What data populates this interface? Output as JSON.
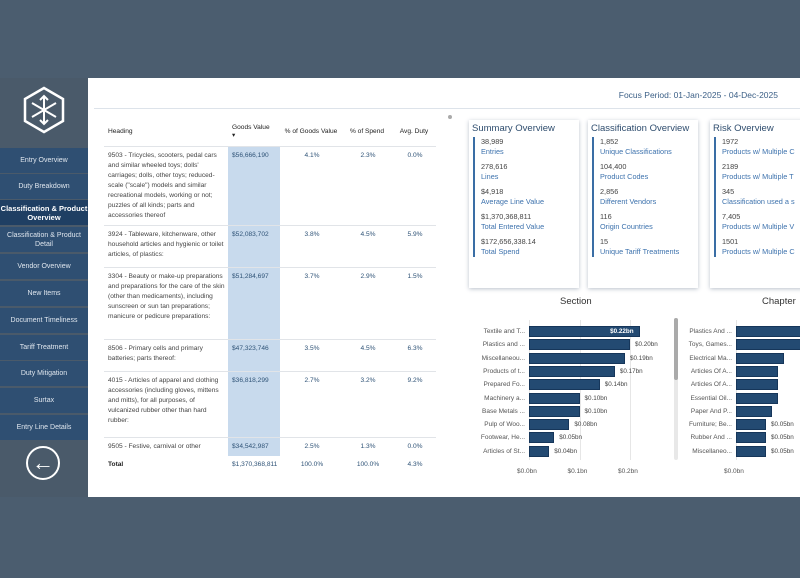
{
  "sidebar": {
    "items": [
      "Entry Overview",
      "Duty Breakdown",
      "Classification & Product Overview",
      "Classification & Product Detail",
      "Vendor Overview",
      "New Items",
      "Document Timeliness",
      "Tariff Treatment",
      "Duty Mitigation",
      "Surtax",
      "Entry Line Details"
    ],
    "active": 2,
    "back_icon": "arrow-left-circle-icon"
  },
  "header": {
    "focus_period": "Focus Period: 01-Jan-2025 - 04-Dec-2025"
  },
  "table": {
    "columns": [
      "Heading",
      "Goods Value",
      "% of Goods Value",
      "% of Spend",
      "Avg. Duty"
    ],
    "sort_indicator": "▾",
    "rows": [
      [
        "9503 - Tricycles, scooters, pedal cars and similar wheeled toys; dolls' carriages; dolls, other toys; reduced-scale (\"scale\") models and similar recreational models, working or not; puzzles of all kinds; parts and accessories thereof",
        "$56,666,190",
        "4.1%",
        "2.3%",
        "0.0%"
      ],
      [
        "3924 - Tableware, kitchenware, other household articles and hygienic or toilet articles, of plastics:",
        "$52,083,702",
        "3.8%",
        "4.5%",
        "5.9%"
      ],
      [
        "3304 - Beauty or make-up preparations and preparations for the care of the skin (other than medicaments), including sunscreen or sun tan preparations; manicure or pedicure preparations:",
        "$51,284,697",
        "3.7%",
        "2.9%",
        "1.5%"
      ],
      [
        "8506 - Primary cells and primary batteries; parts thereof:",
        "$47,323,746",
        "3.5%",
        "4.5%",
        "6.3%"
      ],
      [
        "4015 - Articles of apparel and clothing accessories (including gloves, mittens and mitts), for all purposes, of vulcanized rubber other than hard rubber:",
        "$36,818,299",
        "2.7%",
        "3.2%",
        "9.2%"
      ],
      [
        "9505 - Festive, carnival or other",
        "$34,542,987",
        "2.5%",
        "1.3%",
        "0.0%"
      ]
    ],
    "total": [
      "Total",
      "$1,370,368,811",
      "100.0%",
      "100.0%",
      "4.3%"
    ]
  },
  "cards": [
    {
      "title": "Summary Overview",
      "items": [
        [
          "38,989",
          "Entries"
        ],
        [
          "278,616",
          "Lines"
        ],
        [
          "$4,918",
          "Average Line Value"
        ],
        [
          "$1,370,368,811",
          "Total Entered Value"
        ],
        [
          "$172,656,338.14",
          "Total Spend"
        ]
      ]
    },
    {
      "title": "Classification Overview",
      "items": [
        [
          "1,852",
          "Unique Classifications"
        ],
        [
          "104,400",
          "Product Codes"
        ],
        [
          "2,856",
          "Different Vendors"
        ],
        [
          "116",
          "Origin Countries"
        ],
        [
          "15",
          "Unique Tariff Treatments"
        ]
      ]
    },
    {
      "title": "Risk Overview",
      "items": [
        [
          "1972",
          "Products w/ Multiple C"
        ],
        [
          "2189",
          "Products w/ Multiple T"
        ],
        [
          "345",
          "Classification used a s"
        ],
        [
          "7,405",
          "Products w/ Multiple V"
        ],
        [
          "1501",
          "Products w/ Multiple C"
        ]
      ]
    }
  ],
  "chart_data": [
    {
      "type": "bar",
      "orientation": "horizontal",
      "title": "Section",
      "categories": [
        "Textile and T...",
        "Plastics and ...",
        "Miscellaneou...",
        "Products of t...",
        "Prepared Fo...",
        "Machinery a...",
        "Base Metals ...",
        "Pulp of Woo...",
        "Footwear, He...",
        "Articles of St..."
      ],
      "values": [
        0.22,
        0.2,
        0.19,
        0.17,
        0.14,
        0.1,
        0.1,
        0.08,
        0.05,
        0.04
      ],
      "labels": [
        "$0.22bn",
        "$0.20bn",
        "$0.19bn",
        "$0.17bn",
        "$0.14bn",
        "$0.10bn",
        "$0.10bn",
        "$0.08bn",
        "$0.05bn",
        "$0.04bn"
      ],
      "xticks": [
        "$0.0bn",
        "$0.1bn",
        "$0.2bn"
      ],
      "xlim": [
        0,
        0.24
      ],
      "color": "#234a72"
    },
    {
      "type": "bar",
      "orientation": "horizontal",
      "title": "Chapter",
      "categories": [
        "Plastics And ...",
        "Toys, Games...",
        "Electrical Ma...",
        "Articles Of A...",
        "Articles Of A...",
        "Essential Oil...",
        "Paper And P...",
        "Furniture; Be...",
        "Rubber And ...",
        "Miscellaneo..."
      ],
      "values": [
        0.12,
        0.11,
        0.08,
        0.07,
        0.07,
        0.07,
        0.06,
        0.05,
        0.05,
        0.05
      ],
      "labels": [
        "",
        "",
        "",
        "",
        "",
        "",
        "",
        "$0.05bn",
        "$0.05bn",
        "$0.05bn"
      ],
      "xticks": [
        "$0.0bn"
      ],
      "xlim": [
        0,
        0.12
      ],
      "color": "#234a72"
    }
  ]
}
